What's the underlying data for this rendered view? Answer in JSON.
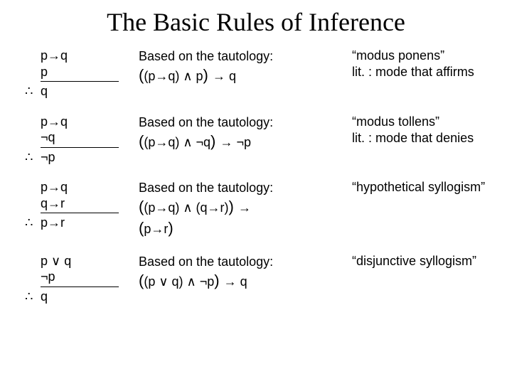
{
  "title": "The Basic Rules of Inference",
  "symbols": {
    "therefore": "∴",
    "implies": "→",
    "and": "∧",
    "or": "∨",
    "not": "¬"
  },
  "based_label": "Based on the tautology:",
  "colors": {
    "background": "#ffffff",
    "text": "#000000",
    "line": "#000000"
  },
  "fonts": {
    "title_family": "Times New Roman",
    "body_family": "Arial",
    "title_size_pt": 36,
    "body_size_pt": 18,
    "formula_outer_size_pt": 22,
    "formula_inner_size_pt": 18
  },
  "rules": [
    {
      "premise1": "p→q",
      "premise2": "p",
      "conclusion": "q",
      "tautology_prefix": "(",
      "tautology_inner": "(p→q) ∧ p",
      "tautology_middle": ") ",
      "tautology_inner2": "→ q",
      "tautology_suffix": "",
      "name_line1": "“modus ponens”",
      "name_line2": "lit. : mode that affirms"
    },
    {
      "premise1": "p→q",
      "premise2": "¬q",
      "conclusion": "¬p",
      "tautology_prefix": "(",
      "tautology_inner": "(p→q) ∧ ¬q",
      "tautology_middle": ") ",
      "tautology_inner2": "→ ¬p",
      "tautology_suffix": "",
      "name_line1": "“modus tollens”",
      "name_line2": "lit. : mode that denies"
    },
    {
      "premise1": "p→q",
      "premise2": "q→r",
      "conclusion": "p→r",
      "tautology_prefix": "(",
      "tautology_inner": "(p→q) ∧ (q→r)",
      "tautology_middle": ") ",
      "tautology_inner2": "→",
      "tautology_suffix_outer_prefix": "(",
      "tautology_suffix_inner": "p→r",
      "tautology_suffix_outer_suffix": ")",
      "name_line1": "“hypothetical syllogism”",
      "name_line2": ""
    },
    {
      "premise1": "p ∨ q",
      "premise2": "¬p",
      "conclusion": "q",
      "tautology_prefix": "(",
      "tautology_inner": "(p ∨ q) ∧ ¬p",
      "tautology_middle": ") ",
      "tautology_inner2": "→ q",
      "tautology_suffix": "",
      "name_line1": "“disjunctive syllogism”",
      "name_line2": ""
    }
  ]
}
